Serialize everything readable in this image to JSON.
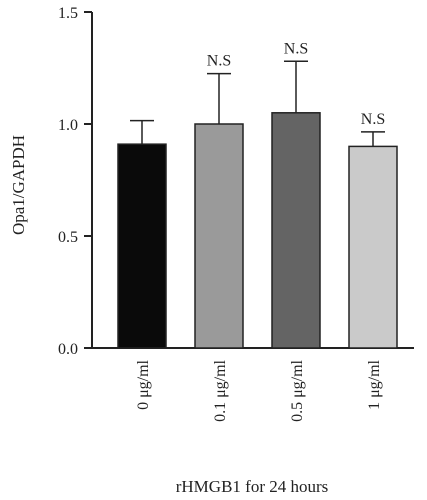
{
  "chart_data": {
    "type": "bar",
    "title": "",
    "xlabel": "rHMGB1 for 24 hours",
    "ylabel": "Opa1/GAPDH",
    "ylim": [
      0,
      1.5
    ],
    "yticks": [
      "0.0",
      "0.5",
      "1.0",
      "1.5"
    ],
    "grid": false,
    "categories": [
      "0 μg/ml",
      "0.1 μg/ml",
      "0.5 μg/ml",
      "1 μg/ml"
    ],
    "values": [
      0.91,
      1.0,
      1.05,
      0.9
    ],
    "error_upper": [
      1.015,
      1.225,
      1.28,
      0.965
    ],
    "annotations": [
      "",
      "N.S",
      "N.S",
      "N.S"
    ],
    "colors": [
      "#0a0a0a",
      "#9a9a9a",
      "#646464",
      "#cacaca"
    ]
  }
}
